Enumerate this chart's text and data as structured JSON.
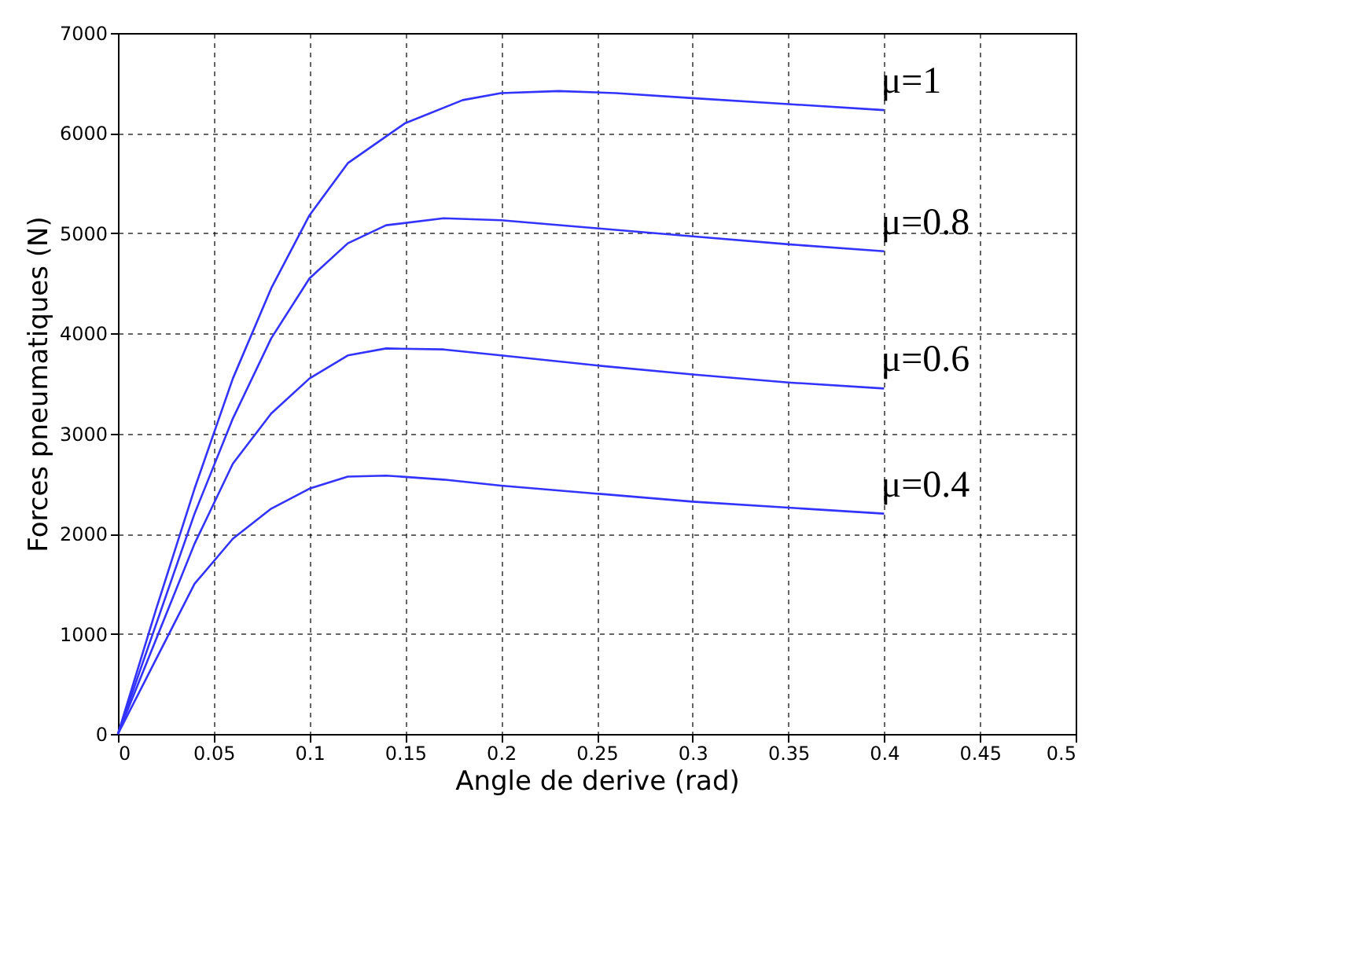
{
  "chart_data": {
    "type": "line",
    "xlabel": "Angle de derive (rad)",
    "ylabel": "Forces pneumatiques (N)",
    "xlim": [
      0,
      0.5
    ],
    "xticks": [
      0,
      0.05,
      0.1,
      0.15,
      0.2,
      0.25,
      0.3,
      0.35,
      0.4,
      0.45,
      0.5
    ],
    "ylim": [
      0,
      7000
    ],
    "yticks": [
      0,
      1000,
      2000,
      3000,
      4000,
      5000,
      6000,
      7000
    ],
    "grid": true,
    "line_style": "solid",
    "marker": "none",
    "series": [
      {
        "name": "μ=1",
        "color": "#3333ff",
        "x": [
          0,
          0.02,
          0.04,
          0.06,
          0.08,
          0.1,
          0.12,
          0.15,
          0.18,
          0.2,
          0.23,
          0.26,
          0.3,
          0.35,
          0.4
        ],
        "values": [
          0,
          1250,
          2450,
          3550,
          4450,
          5180,
          5700,
          6100,
          6330,
          6400,
          6420,
          6400,
          6350,
          6290,
          6230
        ]
      },
      {
        "name": "μ=0.8",
        "color": "#3333ff",
        "x": [
          0,
          0.02,
          0.04,
          0.06,
          0.08,
          0.1,
          0.12,
          0.14,
          0.17,
          0.2,
          0.25,
          0.3,
          0.35,
          0.4
        ],
        "values": [
          0,
          1100,
          2200,
          3150,
          3950,
          4550,
          4900,
          5080,
          5150,
          5130,
          5050,
          4970,
          4890,
          4820
        ]
      },
      {
        "name": "μ=0.6",
        "color": "#3333ff",
        "x": [
          0,
          0.02,
          0.04,
          0.06,
          0.08,
          0.1,
          0.12,
          0.14,
          0.17,
          0.2,
          0.25,
          0.3,
          0.35,
          0.4
        ],
        "values": [
          0,
          950,
          1900,
          2700,
          3200,
          3550,
          3780,
          3850,
          3840,
          3780,
          3680,
          3590,
          3510,
          3450
        ]
      },
      {
        "name": "μ=0.4",
        "color": "#3333ff",
        "x": [
          0,
          0.02,
          0.04,
          0.06,
          0.08,
          0.1,
          0.12,
          0.14,
          0.17,
          0.2,
          0.25,
          0.3,
          0.35,
          0.4
        ],
        "values": [
          0,
          750,
          1500,
          1950,
          2250,
          2450,
          2570,
          2580,
          2540,
          2480,
          2400,
          2320,
          2260,
          2200
        ]
      }
    ]
  }
}
